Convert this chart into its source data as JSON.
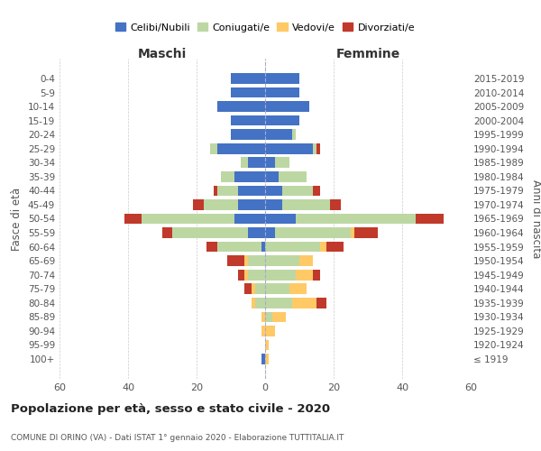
{
  "age_groups": [
    "100+",
    "95-99",
    "90-94",
    "85-89",
    "80-84",
    "75-79",
    "70-74",
    "65-69",
    "60-64",
    "55-59",
    "50-54",
    "45-49",
    "40-44",
    "35-39",
    "30-34",
    "25-29",
    "20-24",
    "15-19",
    "10-14",
    "5-9",
    "0-4"
  ],
  "birth_years": [
    "≤ 1919",
    "1920-1924",
    "1925-1929",
    "1930-1934",
    "1935-1939",
    "1940-1944",
    "1945-1949",
    "1950-1954",
    "1955-1959",
    "1960-1964",
    "1965-1969",
    "1970-1974",
    "1975-1979",
    "1980-1984",
    "1985-1989",
    "1990-1994",
    "1995-1999",
    "2000-2004",
    "2005-2009",
    "2010-2014",
    "2015-2019"
  ],
  "male_celibi": [
    1,
    0,
    0,
    0,
    0,
    0,
    0,
    0,
    1,
    5,
    9,
    8,
    8,
    9,
    5,
    14,
    10,
    10,
    14,
    10,
    10
  ],
  "male_coniugati": [
    0,
    0,
    0,
    0,
    3,
    3,
    5,
    5,
    13,
    22,
    27,
    10,
    6,
    4,
    2,
    2,
    0,
    0,
    0,
    0,
    0
  ],
  "male_vedovi": [
    0,
    0,
    1,
    1,
    1,
    1,
    1,
    1,
    0,
    0,
    0,
    0,
    0,
    0,
    0,
    0,
    0,
    0,
    0,
    0,
    0
  ],
  "male_divorziati": [
    0,
    0,
    0,
    0,
    0,
    2,
    2,
    5,
    3,
    3,
    5,
    3,
    1,
    0,
    0,
    0,
    0,
    0,
    0,
    0,
    0
  ],
  "female_nubili": [
    0,
    0,
    0,
    0,
    0,
    0,
    0,
    0,
    0,
    3,
    9,
    5,
    5,
    4,
    3,
    14,
    8,
    10,
    13,
    10,
    10
  ],
  "female_coniugate": [
    0,
    0,
    0,
    2,
    8,
    7,
    9,
    10,
    16,
    22,
    35,
    14,
    9,
    8,
    4,
    1,
    1,
    0,
    0,
    0,
    0
  ],
  "female_vedove": [
    1,
    1,
    3,
    4,
    7,
    5,
    5,
    4,
    2,
    1,
    0,
    0,
    0,
    0,
    0,
    0,
    0,
    0,
    0,
    0,
    0
  ],
  "female_divorziate": [
    0,
    0,
    0,
    0,
    3,
    0,
    2,
    0,
    5,
    7,
    8,
    3,
    2,
    0,
    0,
    1,
    0,
    0,
    0,
    0,
    0
  ],
  "color_celibi": "#4472c4",
  "color_coniugati": "#bdd7a3",
  "color_vedovi": "#ffc966",
  "color_divorziati": "#c0392b",
  "xlim": 60,
  "title": "Popolazione per età, sesso e stato civile - 2020",
  "subtitle": "COMUNE DI ORINO (VA) - Dati ISTAT 1° gennaio 2020 - Elaborazione TUTTITALIA.IT",
  "ylabel_left": "Fasce di età",
  "ylabel_right": "Anni di nascita",
  "label_maschi": "Maschi",
  "label_femmine": "Femmine",
  "legend_labels": [
    "Celibi/Nubili",
    "Coniugati/e",
    "Vedovi/e",
    "Divorziati/e"
  ],
  "bg_color": "#ffffff",
  "grid_color": "#cccccc",
  "text_color": "#555555"
}
